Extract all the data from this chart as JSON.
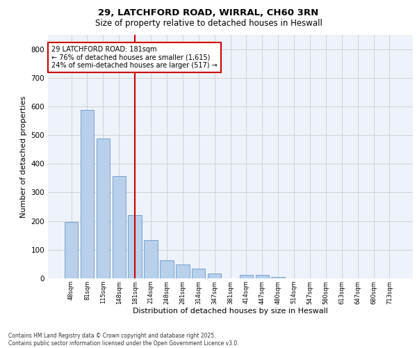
{
  "title1": "29, LATCHFORD ROAD, WIRRAL, CH60 3RN",
  "title2": "Size of property relative to detached houses in Heswall",
  "xlabel": "Distribution of detached houses by size in Heswall",
  "ylabel": "Number of detached properties",
  "categories": [
    "48sqm",
    "81sqm",
    "115sqm",
    "148sqm",
    "181sqm",
    "214sqm",
    "248sqm",
    "281sqm",
    "314sqm",
    "347sqm",
    "381sqm",
    "414sqm",
    "447sqm",
    "480sqm",
    "514sqm",
    "547sqm",
    "580sqm",
    "613sqm",
    "647sqm",
    "680sqm",
    "713sqm"
  ],
  "values": [
    196,
    588,
    487,
    357,
    220,
    133,
    64,
    48,
    35,
    17,
    0,
    12,
    11,
    5,
    0,
    0,
    0,
    0,
    0,
    0,
    0
  ],
  "bar_color": "#b8d0ea",
  "bar_edge_color": "#6699cc",
  "grid_color": "#cccccc",
  "vline_x": 4,
  "vline_color": "#cc0000",
  "annotation_text": "29 LATCHFORD ROAD: 181sqm\n← 76% of detached houses are smaller (1,615)\n24% of semi-detached houses are larger (517) →",
  "annotation_box_color": "#cc0000",
  "ylim": [
    0,
    850
  ],
  "yticks": [
    0,
    100,
    200,
    300,
    400,
    500,
    600,
    700,
    800
  ],
  "background_color": "#eef2fa",
  "footer": "Contains HM Land Registry data © Crown copyright and database right 2025.\nContains public sector information licensed under the Open Government Licence v3.0."
}
